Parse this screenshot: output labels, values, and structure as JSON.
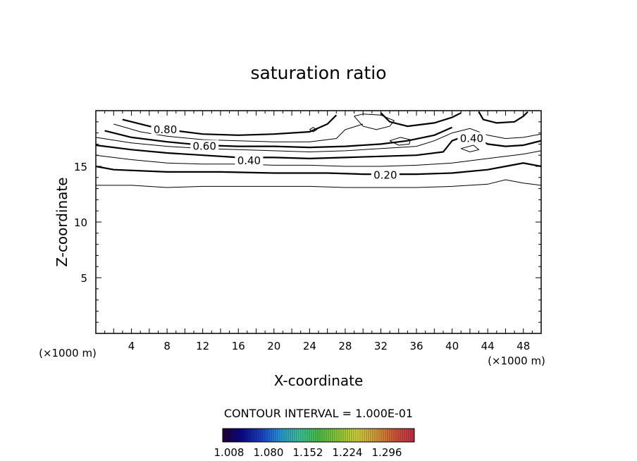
{
  "chart_data": {
    "type": "contour",
    "title": "saturation ratio",
    "xlabel": "X-coordinate",
    "ylabel": "Z-coordinate",
    "x_unit_label": "(×1000 m)",
    "z_unit_label": "(×1000 m)",
    "xlim": [
      0,
      50
    ],
    "ylim": [
      0,
      20
    ],
    "x_ticks": [
      4,
      8,
      12,
      16,
      20,
      24,
      28,
      32,
      36,
      40,
      44,
      48
    ],
    "y_ticks": [
      5,
      10,
      15
    ],
    "contour_interval_text": "CONTOUR INTERVAL = 1.000E-01",
    "contour_labels": [
      {
        "text": "0.80",
        "x": 7.8,
        "z": 18.3
      },
      {
        "text": "0.60",
        "x": 12.2,
        "z": 16.8
      },
      {
        "text": "0.40",
        "x": 17.2,
        "z": 15.5
      },
      {
        "text": "0.40",
        "x": 42.2,
        "z": 17.5
      },
      {
        "text": "0.20",
        "x": 32.5,
        "z": 14.2
      }
    ],
    "contours": [
      {
        "level": 0.1,
        "style": "thin",
        "points": [
          [
            0,
            13.3
          ],
          [
            4,
            13.3
          ],
          [
            8,
            13.1
          ],
          [
            12,
            13.2
          ],
          [
            16,
            13.2
          ],
          [
            20,
            13.2
          ],
          [
            24,
            13.2
          ],
          [
            28,
            13.1
          ],
          [
            32,
            13.1
          ],
          [
            36,
            13.1
          ],
          [
            40,
            13.2
          ],
          [
            44,
            13.4
          ],
          [
            46,
            13.8
          ],
          [
            48,
            13.5
          ],
          [
            50,
            13.3
          ]
        ]
      },
      {
        "level": 0.2,
        "style": "bold",
        "points": [
          [
            0,
            15.0
          ],
          [
            2,
            14.7
          ],
          [
            8,
            14.5
          ],
          [
            14,
            14.5
          ],
          [
            20,
            14.4
          ],
          [
            26,
            14.4
          ],
          [
            30,
            14.3
          ],
          [
            36,
            14.3
          ],
          [
            40,
            14.4
          ],
          [
            44,
            14.7
          ],
          [
            46,
            15.0
          ],
          [
            48,
            15.3
          ],
          [
            50,
            15.0
          ]
        ]
      },
      {
        "level": 0.3,
        "style": "thin",
        "points": [
          [
            0,
            16.0
          ],
          [
            4,
            15.6
          ],
          [
            8,
            15.3
          ],
          [
            12,
            15.2
          ],
          [
            16,
            15.2
          ],
          [
            20,
            15.1
          ],
          [
            24,
            15.1
          ],
          [
            28,
            15.0
          ],
          [
            32,
            15.0
          ],
          [
            36,
            15.1
          ],
          [
            40,
            15.3
          ],
          [
            44,
            15.7
          ],
          [
            48,
            16.1
          ],
          [
            50,
            16.4
          ]
        ]
      },
      {
        "level": 0.4,
        "style": "bold",
        "points": [
          [
            0,
            16.9
          ],
          [
            4,
            16.5
          ],
          [
            8,
            16.2
          ],
          [
            12,
            16.0
          ],
          [
            16,
            15.8
          ],
          [
            20,
            15.8
          ],
          [
            24,
            15.7
          ],
          [
            28,
            15.8
          ],
          [
            32,
            15.9
          ],
          [
            36,
            16.0
          ],
          [
            39,
            16.3
          ],
          [
            40,
            17.3
          ],
          [
            42,
            17.9
          ],
          [
            44,
            17.0
          ],
          [
            46,
            16.8
          ],
          [
            48,
            16.9
          ],
          [
            50,
            17.3
          ]
        ]
      },
      {
        "level": 0.5,
        "style": "thin",
        "points": [
          [
            0,
            17.6
          ],
          [
            4,
            17.1
          ],
          [
            8,
            16.8
          ],
          [
            12,
            16.6
          ],
          [
            16,
            16.5
          ],
          [
            20,
            16.4
          ],
          [
            24,
            16.3
          ],
          [
            28,
            16.4
          ],
          [
            32,
            16.6
          ],
          [
            36,
            16.8
          ],
          [
            38,
            17.3
          ],
          [
            40,
            18.0
          ],
          [
            42,
            18.4
          ],
          [
            44,
            17.8
          ],
          [
            46,
            17.5
          ],
          [
            48,
            17.6
          ],
          [
            50,
            17.9
          ]
        ]
      },
      {
        "level": 0.6,
        "style": "bold",
        "points": [
          [
            1,
            18.2
          ],
          [
            4,
            17.6
          ],
          [
            8,
            17.2
          ],
          [
            12,
            16.9
          ],
          [
            16,
            16.8
          ],
          [
            20,
            16.8
          ],
          [
            24,
            16.7
          ],
          [
            28,
            16.8
          ],
          [
            32,
            17.0
          ],
          [
            35,
            17.3
          ],
          [
            38,
            17.8
          ],
          [
            40,
            18.5
          ]
        ]
      },
      {
        "level": 0.7,
        "style": "thin",
        "points": [
          [
            2,
            18.8
          ],
          [
            5,
            18.1
          ],
          [
            8,
            17.7
          ],
          [
            12,
            17.4
          ],
          [
            16,
            17.3
          ],
          [
            20,
            17.2
          ],
          [
            24,
            17.2
          ],
          [
            27,
            17.5
          ],
          [
            28,
            18.3
          ],
          [
            30,
            18.8
          ]
        ]
      },
      {
        "level": 0.8,
        "style": "bold",
        "points": [
          [
            3,
            19.2
          ],
          [
            6,
            18.6
          ],
          [
            8,
            18.3
          ],
          [
            12,
            17.9
          ],
          [
            16,
            17.8
          ],
          [
            20,
            17.9
          ],
          [
            24,
            18.1
          ],
          [
            26,
            18.8
          ],
          [
            27,
            19.6
          ]
        ]
      }
    ],
    "closed_contours": [
      {
        "level": 0.8,
        "style": "bold",
        "points": [
          [
            32,
            19.8
          ],
          [
            33,
            19.0
          ],
          [
            35,
            18.6
          ],
          [
            38,
            18.9
          ],
          [
            40,
            19.4
          ],
          [
            41,
            19.8
          ]
        ]
      },
      {
        "level": 0.8,
        "style": "bold",
        "points": [
          [
            43,
            19.9
          ],
          [
            43.5,
            19.2
          ],
          [
            45,
            18.9
          ],
          [
            47,
            19.0
          ],
          [
            48,
            19.5
          ],
          [
            48.5,
            19.9
          ]
        ]
      },
      {
        "level": 0.7,
        "style": "thin",
        "points": [
          [
            29,
            19.5
          ],
          [
            30,
            18.6
          ],
          [
            31.5,
            18.3
          ],
          [
            33,
            18.6
          ],
          [
            33.5,
            19.1
          ],
          [
            32,
            19.6
          ],
          [
            30,
            19.7
          ],
          [
            29,
            19.5
          ]
        ]
      },
      {
        "level": 0.6,
        "style": "thin",
        "points": [
          [
            33,
            17.3
          ],
          [
            34,
            16.9
          ],
          [
            35.2,
            17.0
          ],
          [
            35.3,
            17.4
          ],
          [
            34.2,
            17.6
          ],
          [
            33,
            17.3
          ]
        ]
      },
      {
        "level": 0.6,
        "style": "thin",
        "points": [
          [
            41,
            16.6
          ],
          [
            42,
            16.3
          ],
          [
            43,
            16.5
          ],
          [
            42.4,
            16.9
          ],
          [
            41,
            16.6
          ]
        ]
      },
      {
        "level": 0.7,
        "style": "thin",
        "points": [
          [
            24,
            18.3
          ],
          [
            24.4,
            18.1
          ],
          [
            24.8,
            18.3
          ],
          [
            24.4,
            18.5
          ],
          [
            24,
            18.3
          ]
        ]
      }
    ],
    "colorbar": {
      "tick_labels": [
        "1.008",
        "1.080",
        "1.152",
        "1.224",
        "1.296"
      ],
      "colors": [
        "#220033",
        "#0a0a8a",
        "#1d3fd0",
        "#2a9bd8",
        "#3ec9a0",
        "#4ec24a",
        "#8fcf3a",
        "#d6d640",
        "#d7a03a",
        "#d5583a",
        "#d02a4a"
      ]
    }
  }
}
